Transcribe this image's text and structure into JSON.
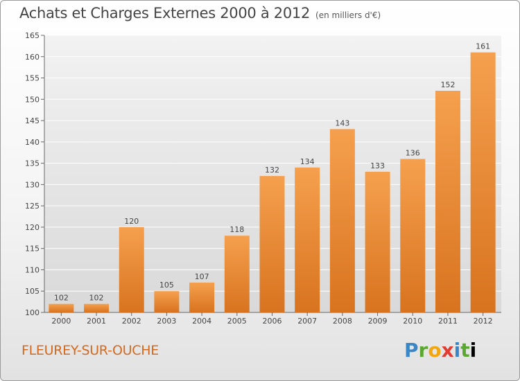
{
  "title": "Achats et Charges Externes 2000 à 2012",
  "unit": "(en milliers d'€)",
  "commune": "FLEUREY-SUR-OUCHE",
  "logo": [
    "P",
    "r",
    "o",
    "x",
    "i",
    "t",
    "i"
  ],
  "colors": {
    "bar_top": "#f5a04e",
    "bar_bottom": "#d8731f",
    "commune": "#d2691e"
  },
  "chart_data": {
    "type": "bar",
    "title": "Achats et Charges Externes 2000 à 2012",
    "categories": [
      "2000",
      "2001",
      "2002",
      "2003",
      "2004",
      "2005",
      "2006",
      "2007",
      "2008",
      "2009",
      "2010",
      "2011",
      "2012"
    ],
    "values": [
      102,
      102,
      120,
      105,
      107,
      118,
      132,
      134,
      143,
      133,
      136,
      152,
      161
    ],
    "ylim": [
      100,
      165
    ],
    "yticks": [
      100,
      105,
      110,
      115,
      120,
      125,
      130,
      135,
      140,
      145,
      150,
      155,
      160,
      165
    ],
    "grid": true
  }
}
